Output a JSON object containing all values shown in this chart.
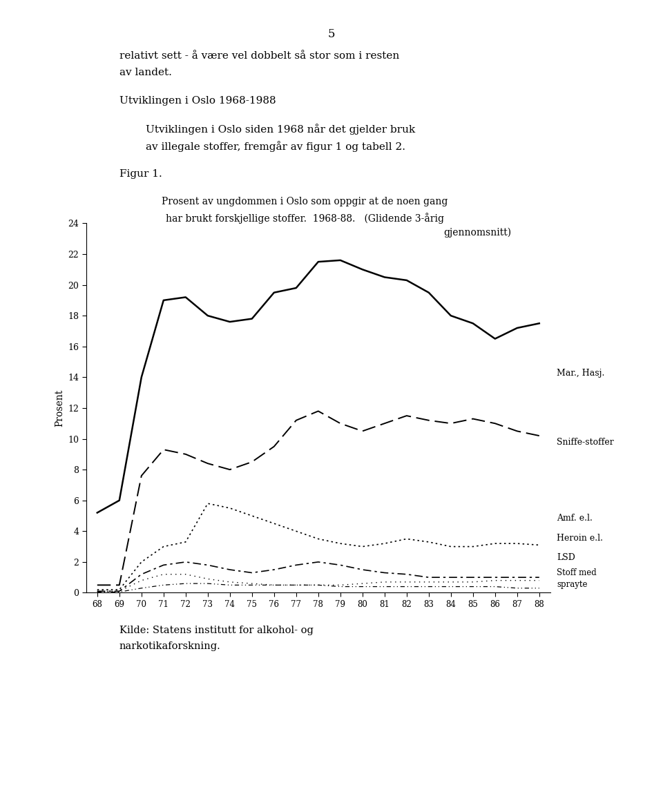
{
  "title_line1": "Prosent av ungdommen i Oslo som oppgir at de noen gang",
  "title_line2": "har brukt forskjellige stoffer.  1968-88.   (Glidende 3-årig",
  "title_line3": "gjennomsnitt)",
  "ylabel": "Prosent",
  "years": [
    68,
    69,
    70,
    71,
    72,
    73,
    74,
    75,
    76,
    77,
    78,
    79,
    80,
    81,
    82,
    83,
    84,
    85,
    86,
    87,
    88
  ],
  "mar_hasj": [
    5.2,
    6.0,
    14.0,
    19.0,
    19.2,
    18.0,
    17.6,
    17.8,
    19.5,
    19.8,
    21.5,
    21.6,
    21.0,
    20.5,
    20.3,
    19.5,
    18.0,
    17.5,
    16.5,
    17.2,
    17.5
  ],
  "sniffe": [
    0.5,
    0.5,
    7.6,
    9.3,
    9.0,
    8.4,
    8.0,
    8.5,
    9.5,
    11.2,
    11.8,
    11.0,
    10.5,
    11.0,
    11.5,
    11.2,
    11.0,
    11.3,
    11.0,
    10.5,
    10.2
  ],
  "amf": [
    0.2,
    0.2,
    2.0,
    3.0,
    3.3,
    5.8,
    5.5,
    5.0,
    4.5,
    4.0,
    3.5,
    3.2,
    3.0,
    3.2,
    3.5,
    3.3,
    3.0,
    3.0,
    3.2,
    3.2,
    3.1
  ],
  "heroin": [
    0.1,
    0.1,
    1.2,
    1.8,
    2.0,
    1.8,
    1.5,
    1.3,
    1.5,
    1.8,
    2.0,
    1.8,
    1.5,
    1.3,
    1.2,
    1.0,
    1.0,
    1.0,
    1.0,
    1.0,
    1.0
  ],
  "lsd": [
    0.1,
    0.1,
    0.8,
    1.2,
    1.2,
    0.9,
    0.7,
    0.6,
    0.5,
    0.5,
    0.5,
    0.5,
    0.6,
    0.7,
    0.7,
    0.7,
    0.7,
    0.7,
    0.8,
    0.8,
    0.8
  ],
  "stoff_sprayte": [
    0.05,
    0.05,
    0.3,
    0.5,
    0.6,
    0.6,
    0.5,
    0.5,
    0.5,
    0.5,
    0.5,
    0.4,
    0.4,
    0.4,
    0.4,
    0.4,
    0.4,
    0.4,
    0.4,
    0.3,
    0.3
  ],
  "ylim": [
    0,
    24
  ],
  "yticks": [
    0,
    2,
    4,
    6,
    8,
    10,
    12,
    14,
    16,
    18,
    20,
    22,
    24
  ],
  "source_text1": "Kilde: Statens institutt for alkohol- og",
  "source_text2": "narkotikaforskning.",
  "page_number": "5",
  "header_line1": "relativt sett - å være vel dobbelt så stor som i resten",
  "header_line2": "av landet.",
  "section_header": "Utviklingen i Oslo 1968-1988",
  "body_text_line1": "Utviklingen i Oslo siden 1968 når det gjelder bruk",
  "body_text_line2": "av illegale stoffer, fremgår av figur 1 og tabell 2.",
  "figur_label": "Figur 1.",
  "label_mar_hasj": "Mar., Hasj.",
  "label_sniffe": "Sniffe-stoffer",
  "label_amf": "Amf. e.l.",
  "label_heroin": "Heroin e.l.",
  "label_lsd": "LSD",
  "label_stoff1": "Stoff med",
  "label_stoff2": "sprayte"
}
